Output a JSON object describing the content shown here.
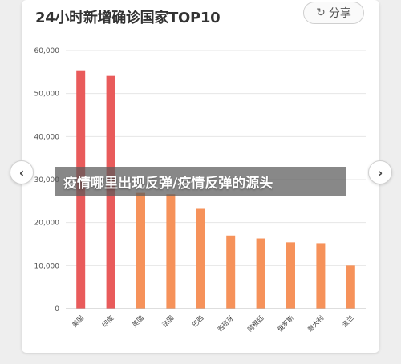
{
  "header": {
    "title": "24小时新增确诊国家TOP10",
    "share_label": "分享",
    "share_icon": "share-icon"
  },
  "nav": {
    "prev_icon": "chevron-left-icon",
    "next_icon": "chevron-right-icon",
    "prev_glyph": "‹",
    "next_glyph": "›"
  },
  "overlay": {
    "text": "疫情哪里出现反弹/疫情反弹的源头"
  },
  "colors": {
    "red": "#e95b5b",
    "orange": "#f6925a",
    "grid": "#e6e6e6"
  },
  "chart_data": {
    "type": "bar",
    "title": "24小时新增确诊国家TOP10",
    "xlabel": "",
    "ylabel": "",
    "ylim": [
      0,
      60000
    ],
    "yticks": [
      "0",
      "10,000",
      "20,000",
      "30,000",
      "40,000",
      "50,000",
      "60,000"
    ],
    "categories": [
      "美国",
      "印度",
      "英国",
      "法国",
      "巴西",
      "西班牙",
      "阿根廷",
      "俄罗斯",
      "意大利",
      "波兰"
    ],
    "values": [
      55400,
      54100,
      26900,
      26600,
      23200,
      17000,
      16300,
      15400,
      15200,
      10000
    ],
    "bar_colors": [
      "#e95b5b",
      "#e95b5b",
      "#f6925a",
      "#f6925a",
      "#f6925a",
      "#f6925a",
      "#f6925a",
      "#f6925a",
      "#f6925a",
      "#f6925a"
    ],
    "grid": true,
    "legend": "none"
  }
}
